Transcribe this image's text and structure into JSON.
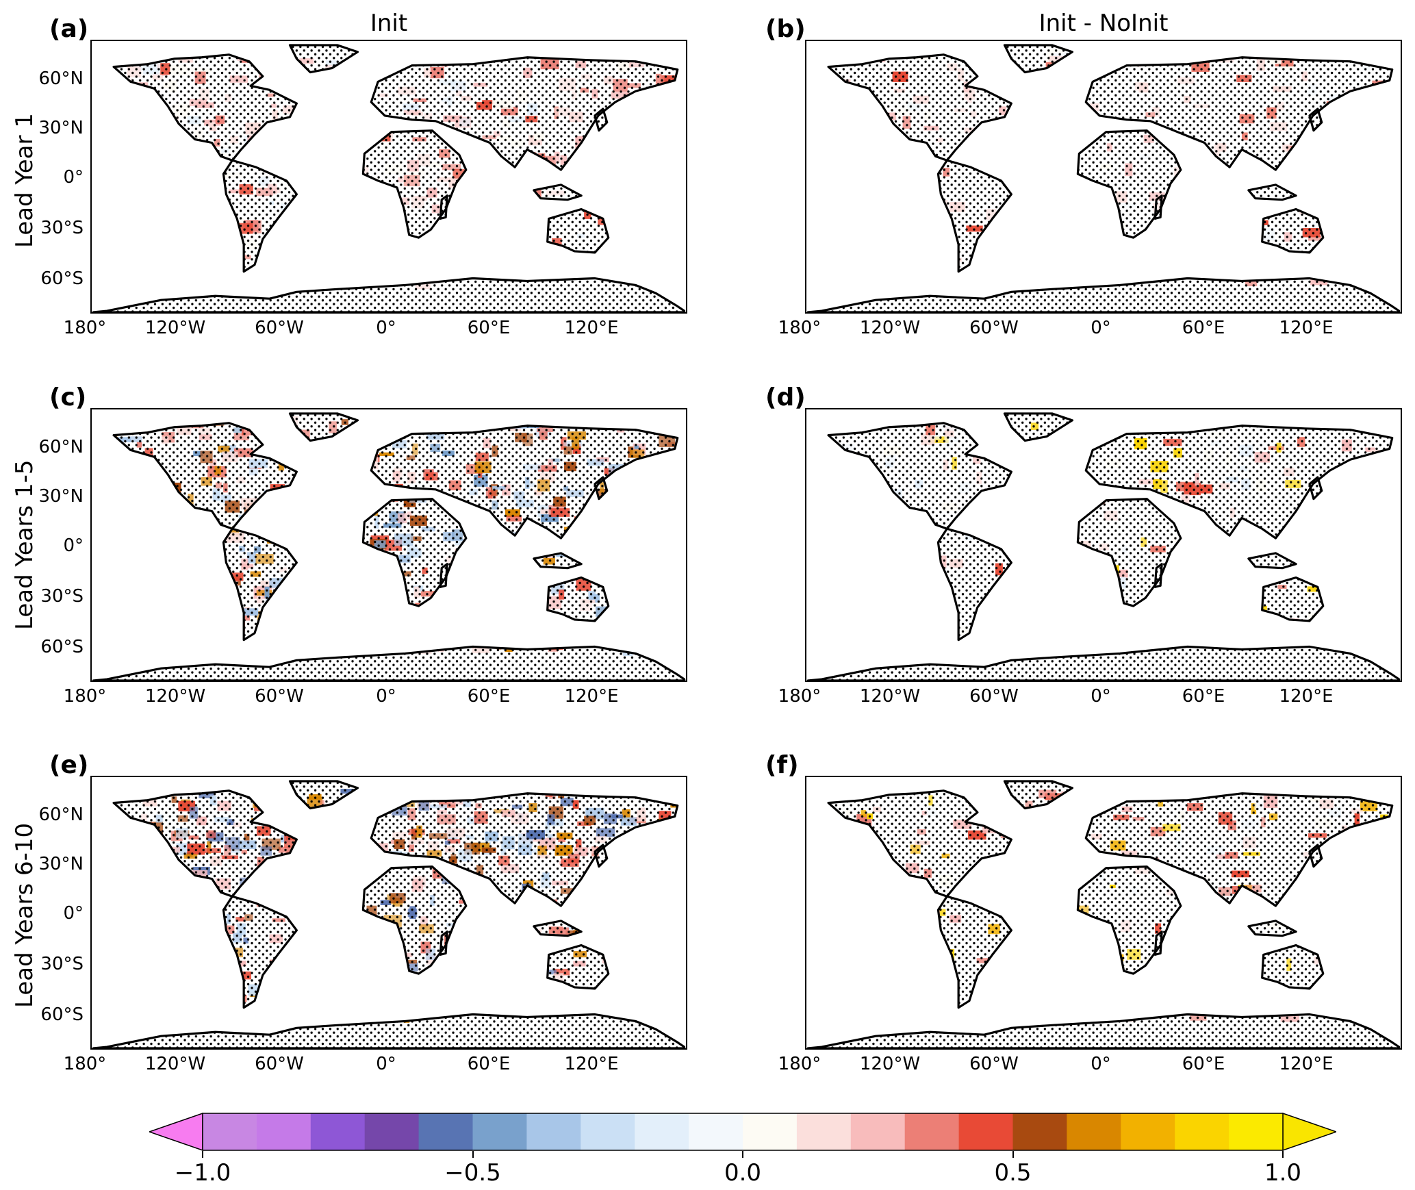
{
  "figure": {
    "column_titles": [
      "Init",
      "Init - NoInit"
    ],
    "row_labels": [
      "Lead Year 1",
      "Lead Years 1-5",
      "Lead Years 6-10"
    ],
    "panel_labels": [
      "(a)",
      "(b)",
      "(c)",
      "(d)",
      "(e)",
      "(f)"
    ],
    "lat_ticks": [
      "60°N",
      "30°N",
      "0°",
      "30°S",
      "60°S"
    ],
    "lon_ticks": [
      "180°",
      "120°W",
      "60°W",
      "0°",
      "60°E",
      "120°E"
    ]
  },
  "colorbar": {
    "tick_labels": [
      "−1.0",
      "−0.5",
      "0.0",
      "0.5",
      "1.0"
    ],
    "range": [
      -1.0,
      1.0
    ],
    "extend": "both",
    "colors": [
      "#c887e3",
      "#c57ae8",
      "#8e57d6",
      "#7547aa",
      "#5874b3",
      "#79a1cc",
      "#a8c6e8",
      "#cbe0f5",
      "#e3effa",
      "#f3f8fc",
      "#fdfbf4",
      "#fbdfdc",
      "#f8bcbc",
      "#ec7f76",
      "#e84a36",
      "#a84a10",
      "#d98700",
      "#f2b100",
      "#fad400",
      "#fbea00"
    ],
    "under_color": "#f77cf0",
    "over_color": "#f9e500"
  },
  "map": {
    "stipple_color": "#000000",
    "coast_color": "#000000"
  }
}
